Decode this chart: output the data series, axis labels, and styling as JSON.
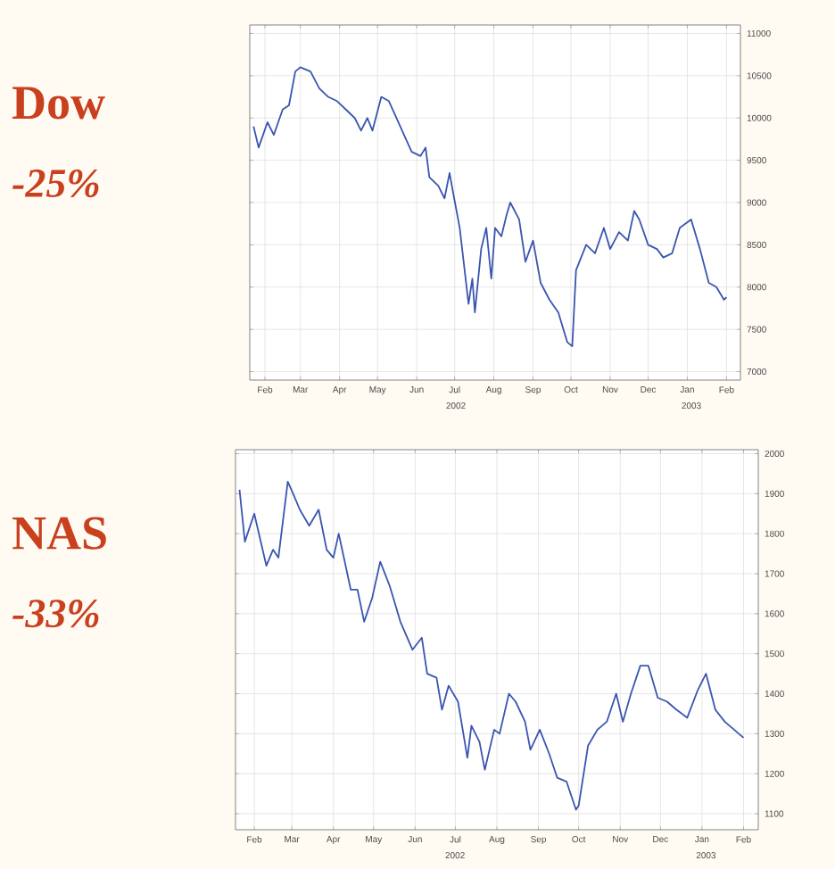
{
  "chart_data": [
    {
      "type": "line",
      "title": "Dow",
      "subtitle": "-25%",
      "color": "#3a55b0",
      "grid": true,
      "x": [
        "2002-01-23",
        "2002-01-27",
        "2002-02-03",
        "2002-02-08",
        "2002-02-15",
        "2002-02-20",
        "2002-02-25",
        "2002-03-01",
        "2002-03-09",
        "2002-03-16",
        "2002-03-23",
        "2002-03-30",
        "2002-04-06",
        "2002-04-13",
        "2002-04-18",
        "2002-04-23",
        "2002-04-27",
        "2002-05-04",
        "2002-05-10",
        "2002-05-19",
        "2002-05-28",
        "2002-06-04",
        "2002-06-08",
        "2002-06-11",
        "2002-06-18",
        "2002-06-23",
        "2002-06-27",
        "2002-06-30",
        "2002-07-05",
        "2002-07-12",
        "2002-07-15",
        "2002-07-17",
        "2002-07-22",
        "2002-07-26",
        "2002-07-30",
        "2002-08-02",
        "2002-08-07",
        "2002-08-11",
        "2002-08-14",
        "2002-08-21",
        "2002-08-26",
        "2002-09-01",
        "2002-09-07",
        "2002-09-14",
        "2002-09-21",
        "2002-09-28",
        "2002-10-02",
        "2002-10-05",
        "2002-10-13",
        "2002-10-20",
        "2002-10-27",
        "2002-11-01",
        "2002-11-08",
        "2002-11-15",
        "2002-11-20",
        "2002-11-24",
        "2002-12-01",
        "2002-12-08",
        "2002-12-13",
        "2002-12-20",
        "2002-12-26",
        "2003-01-04",
        "2003-01-11",
        "2003-01-18",
        "2003-01-24",
        "2003-01-30",
        "2003-02-01"
      ],
      "values": [
        9900,
        9650,
        9950,
        9800,
        10100,
        10150,
        10550,
        10600,
        10550,
        10350,
        10250,
        10200,
        10100,
        10000,
        9850,
        10000,
        9850,
        10250,
        10200,
        9900,
        9600,
        9550,
        9650,
        9300,
        9200,
        9050,
        9350,
        9100,
        8700,
        7800,
        8100,
        7700,
        8450,
        8700,
        8100,
        8700,
        8600,
        8850,
        9000,
        8800,
        8300,
        8550,
        8050,
        7850,
        7700,
        7350,
        7300,
        8200,
        8500,
        8400,
        8700,
        8450,
        8650,
        8550,
        8900,
        8800,
        8500,
        8450,
        8350,
        8400,
        8700,
        8800,
        8450,
        8050,
        8000,
        7850,
        7880
      ],
      "xlim": [
        "2002-01-20",
        "2003-02-12"
      ],
      "ylim": [
        6900,
        11100
      ],
      "xticks": [
        {
          "value": "2002-02-01",
          "label": "Feb"
        },
        {
          "value": "2002-03-01",
          "label": "Mar"
        },
        {
          "value": "2002-04-01",
          "label": "Apr"
        },
        {
          "value": "2002-05-01",
          "label": "May"
        },
        {
          "value": "2002-06-01",
          "label": "Jun"
        },
        {
          "value": "2002-07-01",
          "label": "Jul"
        },
        {
          "value": "2002-08-01",
          "label": "Aug"
        },
        {
          "value": "2002-09-01",
          "label": "Sep"
        },
        {
          "value": "2002-10-01",
          "label": "Oct"
        },
        {
          "value": "2002-11-01",
          "label": "Nov"
        },
        {
          "value": "2002-12-01",
          "label": "Dec"
        },
        {
          "value": "2003-01-01",
          "label": "Jan"
        },
        {
          "value": "2003-02-01",
          "label": "Feb"
        }
      ],
      "yticks": [
        7000,
        7500,
        8000,
        8500,
        9000,
        9500,
        10000,
        10500,
        11000
      ],
      "annotations": [
        "2002",
        "2003"
      ]
    },
    {
      "type": "line",
      "title": "NAS",
      "subtitle": "-33%",
      "color": "#3a55b0",
      "grid": true,
      "x": [
        "2002-01-21",
        "2002-01-25",
        "2002-02-01",
        "2002-02-10",
        "2002-02-15",
        "2002-02-19",
        "2002-02-26",
        "2002-03-02",
        "2002-03-07",
        "2002-03-14",
        "2002-03-21",
        "2002-03-27",
        "2002-04-01",
        "2002-04-05",
        "2002-04-14",
        "2002-04-19",
        "2002-04-24",
        "2002-04-30",
        "2002-05-06",
        "2002-05-13",
        "2002-05-21",
        "2002-05-30",
        "2002-06-06",
        "2002-06-10",
        "2002-06-17",
        "2002-06-21",
        "2002-06-26",
        "2002-07-03",
        "2002-07-10",
        "2002-07-13",
        "2002-07-19",
        "2002-07-23",
        "2002-07-30",
        "2002-08-03",
        "2002-08-10",
        "2002-08-15",
        "2002-08-22",
        "2002-08-26",
        "2002-09-02",
        "2002-09-09",
        "2002-09-15",
        "2002-09-22",
        "2002-09-29",
        "2002-10-01",
        "2002-10-08",
        "2002-10-15",
        "2002-10-22",
        "2002-10-29",
        "2002-11-03",
        "2002-11-09",
        "2002-11-16",
        "2002-11-22",
        "2002-11-29",
        "2002-12-06",
        "2002-12-13",
        "2002-12-21",
        "2002-12-29",
        "2003-01-04",
        "2003-01-11",
        "2003-01-18",
        "2003-01-25",
        "2003-02-01"
      ],
      "values": [
        1910,
        1780,
        1850,
        1720,
        1760,
        1740,
        1930,
        1900,
        1860,
        1820,
        1860,
        1760,
        1740,
        1800,
        1660,
        1660,
        1580,
        1640,
        1730,
        1670,
        1580,
        1510,
        1540,
        1450,
        1440,
        1360,
        1420,
        1380,
        1240,
        1320,
        1280,
        1210,
        1310,
        1300,
        1400,
        1380,
        1330,
        1260,
        1310,
        1250,
        1190,
        1180,
        1110,
        1120,
        1270,
        1310,
        1330,
        1400,
        1330,
        1400,
        1470,
        1470,
        1390,
        1380,
        1360,
        1340,
        1410,
        1450,
        1360,
        1330,
        1310,
        1290
      ],
      "xlim": [
        "2002-01-18",
        "2003-02-12"
      ],
      "ylim": [
        1060,
        2010
      ],
      "xticks": [
        {
          "value": "2002-02-01",
          "label": "Feb"
        },
        {
          "value": "2002-03-01",
          "label": "Mar"
        },
        {
          "value": "2002-04-01",
          "label": "Apr"
        },
        {
          "value": "2002-05-01",
          "label": "May"
        },
        {
          "value": "2002-06-01",
          "label": "Jun"
        },
        {
          "value": "2002-07-01",
          "label": "Jul"
        },
        {
          "value": "2002-08-01",
          "label": "Aug"
        },
        {
          "value": "2002-09-01",
          "label": "Sep"
        },
        {
          "value": "2002-10-01",
          "label": "Oct"
        },
        {
          "value": "2002-11-01",
          "label": "Nov"
        },
        {
          "value": "2002-12-01",
          "label": "Dec"
        },
        {
          "value": "2003-01-01",
          "label": "Jan"
        },
        {
          "value": "2003-02-01",
          "label": "Feb"
        }
      ],
      "yticks": [
        1100,
        1200,
        1300,
        1400,
        1500,
        1600,
        1700,
        1800,
        1900,
        2000
      ],
      "annotations": [
        "2002",
        "2003"
      ]
    }
  ]
}
